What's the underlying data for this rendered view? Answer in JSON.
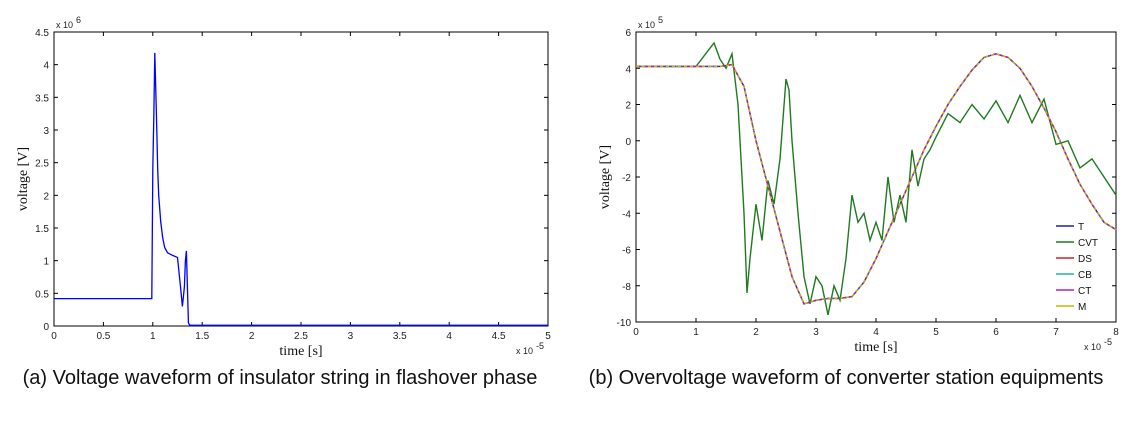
{
  "chart_data": [
    {
      "type": "line",
      "caption": "(a) Voltage waveform of insulator string in flashover phase",
      "xlabel": "time [s]",
      "ylabel": "voltage [V]",
      "x_multiplier": "x 10",
      "x_exponent": "-5",
      "y_multiplier": "x 10",
      "y_exponent": "6",
      "xlim": [
        0,
        5
      ],
      "ylim": [
        0,
        4.5
      ],
      "xticks": [
        "0",
        "0.5",
        "1",
        "1.5",
        "2",
        "2.5",
        "3",
        "3.5",
        "4",
        "4.5",
        "5"
      ],
      "yticks": [
        "0",
        "0.5",
        "1",
        "1.5",
        "2",
        "2.5",
        "3",
        "3.5",
        "4",
        "4.5"
      ],
      "grid": false,
      "series": [
        {
          "color": "#0000ff",
          "x": [
            0,
            0.99,
            1.0,
            1.01,
            1.02,
            1.03,
            1.04,
            1.05,
            1.06,
            1.08,
            1.1,
            1.12,
            1.15,
            1.2,
            1.25,
            1.28,
            1.3,
            1.32,
            1.33,
            1.34,
            1.35,
            1.36,
            1.37,
            1.38,
            1.4,
            1.5,
            2.0,
            2.5,
            3.0,
            3.5,
            4.0,
            4.5,
            5.0
          ],
          "y": [
            0.42,
            0.42,
            2.4,
            3.2,
            4.18,
            3.6,
            3.0,
            2.4,
            2.0,
            1.6,
            1.35,
            1.2,
            1.12,
            1.08,
            1.05,
            0.6,
            0.3,
            0.6,
            1.0,
            1.15,
            0.6,
            0.05,
            0.02,
            0.01,
            0.01,
            0.01,
            0.01,
            0.01,
            0.01,
            0.01,
            0.01,
            0.01,
            0.01
          ]
        }
      ]
    },
    {
      "type": "line",
      "caption": "(b) Overvoltage waveform of converter station equipments",
      "xlabel": "time [s]",
      "ylabel": "voltage [V]",
      "x_multiplier": "x 10",
      "x_exponent": "-5",
      "y_multiplier": "x 10",
      "y_exponent": "5",
      "xlim": [
        0,
        8
      ],
      "ylim": [
        -10,
        6
      ],
      "xticks": [
        "0",
        "1",
        "2",
        "3",
        "4",
        "5",
        "6",
        "7",
        "8"
      ],
      "yticks": [
        "-10",
        "-8",
        "-6",
        "-4",
        "-2",
        "0",
        "2",
        "4",
        "6"
      ],
      "grid": false,
      "legend_position": "bottom-right",
      "series": [
        {
          "name": "T",
          "color": "#1f1fb4",
          "x": [
            0,
            1.0,
            1.4,
            1.6,
            1.8,
            2.0,
            2.2,
            2.4,
            2.6,
            2.8,
            3.0,
            3.2,
            3.4,
            3.6,
            3.8,
            4.0,
            4.2,
            4.4,
            4.6,
            4.8,
            5.0,
            5.2,
            5.4,
            5.6,
            5.8,
            6.0,
            6.2,
            6.4,
            6.6,
            6.8,
            7.0,
            7.2,
            7.4,
            7.6,
            7.8,
            8.0
          ],
          "y": [
            4.1,
            4.1,
            4.1,
            4.2,
            3.0,
            0.0,
            -2.5,
            -5.0,
            -7.5,
            -9.0,
            -8.8,
            -8.7,
            -8.7,
            -8.6,
            -7.8,
            -6.5,
            -5.0,
            -3.5,
            -2.0,
            -0.5,
            0.8,
            2.0,
            3.0,
            3.9,
            4.6,
            4.8,
            4.6,
            4.0,
            3.0,
            1.8,
            0.5,
            -1.0,
            -2.4,
            -3.5,
            -4.5,
            -4.9
          ]
        },
        {
          "name": "CVT",
          "color": "#1f7a1f",
          "x": [
            0,
            1.0,
            1.3,
            1.4,
            1.5,
            1.6,
            1.7,
            1.8,
            1.85,
            1.9,
            2.0,
            2.1,
            2.2,
            2.3,
            2.4,
            2.5,
            2.55,
            2.6,
            2.7,
            2.8,
            2.9,
            3.0,
            3.1,
            3.2,
            3.3,
            3.4,
            3.5,
            3.6,
            3.7,
            3.8,
            3.9,
            4.0,
            4.1,
            4.2,
            4.3,
            4.4,
            4.5,
            4.6,
            4.7,
            4.8,
            4.9,
            5.0,
            5.2,
            5.4,
            5.6,
            5.8,
            6.0,
            6.2,
            6.4,
            6.6,
            6.8,
            7.0,
            7.2,
            7.4,
            7.6,
            7.8,
            8.0
          ],
          "y": [
            4.1,
            4.1,
            5.4,
            4.5,
            4.0,
            4.8,
            2.0,
            -4.0,
            -8.4,
            -6.5,
            -3.5,
            -5.5,
            -2.2,
            -3.5,
            -1.0,
            3.4,
            2.8,
            0.0,
            -4.0,
            -7.5,
            -9.0,
            -7.5,
            -8.0,
            -9.6,
            -8.0,
            -8.8,
            -6.5,
            -3.0,
            -4.5,
            -4.0,
            -5.5,
            -4.5,
            -5.5,
            -2.0,
            -4.5,
            -3.0,
            -4.5,
            -0.5,
            -2.5,
            -1.0,
            -0.5,
            0.2,
            1.5,
            1.0,
            2.0,
            1.2,
            2.2,
            1.0,
            2.5,
            1.0,
            2.3,
            -0.2,
            0.0,
            -1.5,
            -1.0,
            -2.0,
            -3.0
          ]
        },
        {
          "name": "DS",
          "color": "#d62020",
          "x": [
            0,
            1.0,
            1.4,
            1.6,
            1.8,
            2.0,
            2.2,
            2.4,
            2.6,
            2.8,
            3.0,
            3.2,
            3.4,
            3.6,
            3.8,
            4.0,
            4.2,
            4.4,
            4.6,
            4.8,
            5.0,
            5.2,
            5.4,
            5.6,
            5.8,
            6.0,
            6.2,
            6.4,
            6.6,
            6.8,
            7.0,
            7.2,
            7.4,
            7.6,
            7.8,
            8.0
          ],
          "y": [
            4.1,
            4.1,
            4.1,
            4.2,
            3.0,
            0.0,
            -2.5,
            -5.0,
            -7.5,
            -9.0,
            -8.8,
            -8.7,
            -8.7,
            -8.6,
            -7.8,
            -6.5,
            -5.0,
            -3.5,
            -2.0,
            -0.5,
            0.8,
            2.0,
            3.0,
            3.9,
            4.6,
            4.8,
            4.6,
            4.0,
            3.0,
            1.8,
            0.5,
            -1.0,
            -2.4,
            -3.5,
            -4.5,
            -4.9
          ]
        },
        {
          "name": "CB",
          "color": "#20b0b0",
          "x": [
            0,
            1.0,
            1.4,
            1.6,
            1.8,
            2.0,
            2.2,
            2.4,
            2.6,
            2.8,
            3.0,
            3.2,
            3.4,
            3.6,
            3.8,
            4.0,
            4.2,
            4.4,
            4.6,
            4.8,
            5.0,
            5.2,
            5.4,
            5.6,
            5.8,
            6.0,
            6.2,
            6.4,
            6.6,
            6.8,
            7.0,
            7.2,
            7.4,
            7.6,
            7.8,
            8.0
          ],
          "y": [
            4.1,
            4.1,
            4.1,
            4.2,
            3.0,
            0.0,
            -2.5,
            -5.0,
            -7.5,
            -9.0,
            -8.8,
            -8.7,
            -8.7,
            -8.6,
            -7.8,
            -6.5,
            -5.0,
            -3.5,
            -2.0,
            -0.5,
            0.8,
            2.0,
            3.0,
            3.9,
            4.6,
            4.8,
            4.6,
            4.0,
            3.0,
            1.8,
            0.5,
            -1.0,
            -2.4,
            -3.5,
            -4.5,
            -4.9
          ]
        },
        {
          "name": "CT",
          "color": "#b020b0",
          "x": [
            0,
            1.0,
            1.4,
            1.6,
            1.8,
            2.0,
            2.2,
            2.4,
            2.6,
            2.8,
            3.0,
            3.2,
            3.4,
            3.6,
            3.8,
            4.0,
            4.2,
            4.4,
            4.6,
            4.8,
            5.0,
            5.2,
            5.4,
            5.6,
            5.8,
            6.0,
            6.2,
            6.4,
            6.6,
            6.8,
            7.0,
            7.2,
            7.4,
            7.6,
            7.8,
            8.0
          ],
          "y": [
            4.1,
            4.1,
            4.1,
            4.2,
            3.0,
            0.0,
            -2.5,
            -5.0,
            -7.5,
            -9.0,
            -8.8,
            -8.7,
            -8.7,
            -8.6,
            -7.8,
            -6.5,
            -5.0,
            -3.5,
            -2.0,
            -0.5,
            0.8,
            2.0,
            3.0,
            3.9,
            4.6,
            4.8,
            4.6,
            4.0,
            3.0,
            1.8,
            0.5,
            -1.0,
            -2.4,
            -3.5,
            -4.5,
            -4.9
          ]
        },
        {
          "name": "M",
          "color": "#c8b400",
          "x": [
            0,
            1.0,
            1.4,
            1.6,
            1.8,
            2.0,
            2.2,
            2.4,
            2.6,
            2.8,
            3.0,
            3.2,
            3.4,
            3.6,
            3.8,
            4.0,
            4.2,
            4.4,
            4.6,
            4.8,
            5.0,
            5.2,
            5.4,
            5.6,
            5.8,
            6.0,
            6.2,
            6.4,
            6.6,
            6.8,
            7.0,
            7.2,
            7.4,
            7.6,
            7.8,
            8.0
          ],
          "y": [
            4.1,
            4.1,
            4.1,
            4.2,
            3.0,
            0.0,
            -2.5,
            -5.0,
            -7.5,
            -9.0,
            -8.8,
            -8.7,
            -8.7,
            -8.6,
            -7.8,
            -6.5,
            -5.0,
            -3.5,
            -2.0,
            -0.5,
            0.8,
            2.0,
            3.0,
            3.9,
            4.6,
            4.8,
            4.6,
            4.0,
            3.0,
            1.8,
            0.5,
            -1.0,
            -2.4,
            -3.5,
            -4.5,
            -4.9
          ]
        }
      ]
    }
  ]
}
